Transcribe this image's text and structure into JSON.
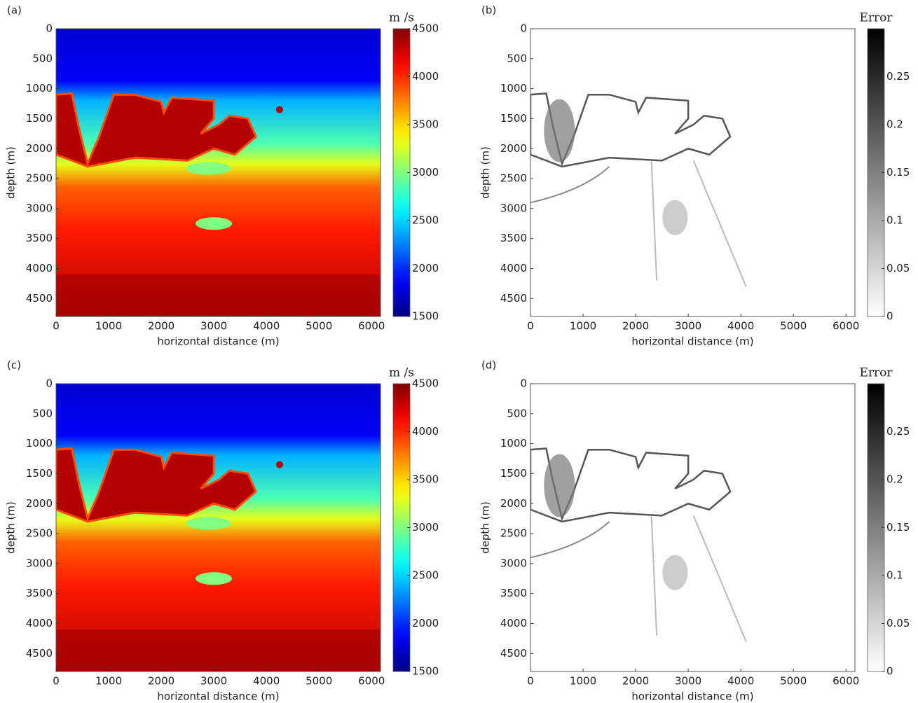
{
  "chart_data": [
    {
      "type": "heatmap",
      "panel_label": "(a)",
      "xlabel": "horizontal distance (m)",
      "ylabel": "depth (m)",
      "xlim": [
        0,
        6170
      ],
      "xticks": [
        0,
        1000,
        2000,
        3000,
        4000,
        5000,
        6000
      ],
      "ylim": [
        4800,
        0
      ],
      "yticks": [
        0,
        500,
        1000,
        1500,
        2000,
        2500,
        3000,
        3500,
        4000,
        4500
      ],
      "colorbar": {
        "label": "m /s",
        "colormap": "jet",
        "lim": [
          1500,
          4500
        ],
        "ticks": [
          1500,
          2000,
          2500,
          3000,
          3500,
          4000,
          4500
        ]
      }
    },
    {
      "type": "heatmap",
      "panel_label": "(b)",
      "xlabel": "horizontal distance (m)",
      "ylabel": "depth (m)",
      "xlim": [
        0,
        6170
      ],
      "xticks": [
        0,
        1000,
        2000,
        3000,
        4000,
        5000,
        6000
      ],
      "ylim": [
        4800,
        0
      ],
      "yticks": [
        0,
        500,
        1000,
        1500,
        2000,
        2500,
        3000,
        3500,
        4000,
        4500
      ],
      "colorbar": {
        "label": "Error",
        "colormap": "gray_r",
        "lim": [
          0,
          0.3
        ],
        "ticks": [
          0,
          0.05,
          0.1,
          0.15,
          0.2,
          0.25
        ]
      }
    },
    {
      "type": "heatmap",
      "panel_label": "(c)",
      "xlabel": "horizontal distance (m)",
      "ylabel": "depth (m)",
      "xlim": [
        0,
        6170
      ],
      "xticks": [
        0,
        1000,
        2000,
        3000,
        4000,
        5000,
        6000
      ],
      "ylim": [
        4800,
        0
      ],
      "yticks": [
        0,
        500,
        1000,
        1500,
        2000,
        2500,
        3000,
        3500,
        4000,
        4500
      ],
      "colorbar": {
        "label": "m /s",
        "colormap": "jet",
        "lim": [
          1500,
          4500
        ],
        "ticks": [
          1500,
          2000,
          2500,
          3000,
          3500,
          4000,
          4500
        ]
      }
    },
    {
      "type": "heatmap",
      "panel_label": "(d)",
      "xlabel": "horizontal distance (m)",
      "ylabel": "depth (m)",
      "xlim": [
        0,
        6170
      ],
      "xticks": [
        0,
        1000,
        2000,
        3000,
        4000,
        5000,
        6000
      ],
      "ylim": [
        4800,
        0
      ],
      "yticks": [
        0,
        500,
        1000,
        1500,
        2000,
        2500,
        3000,
        3500,
        4000,
        4500
      ],
      "colorbar": {
        "label": "Error",
        "colormap": "gray_r",
        "lim": [
          0,
          0.3
        ],
        "ticks": [
          0,
          0.05,
          0.1,
          0.15,
          0.2,
          0.25
        ]
      }
    }
  ]
}
